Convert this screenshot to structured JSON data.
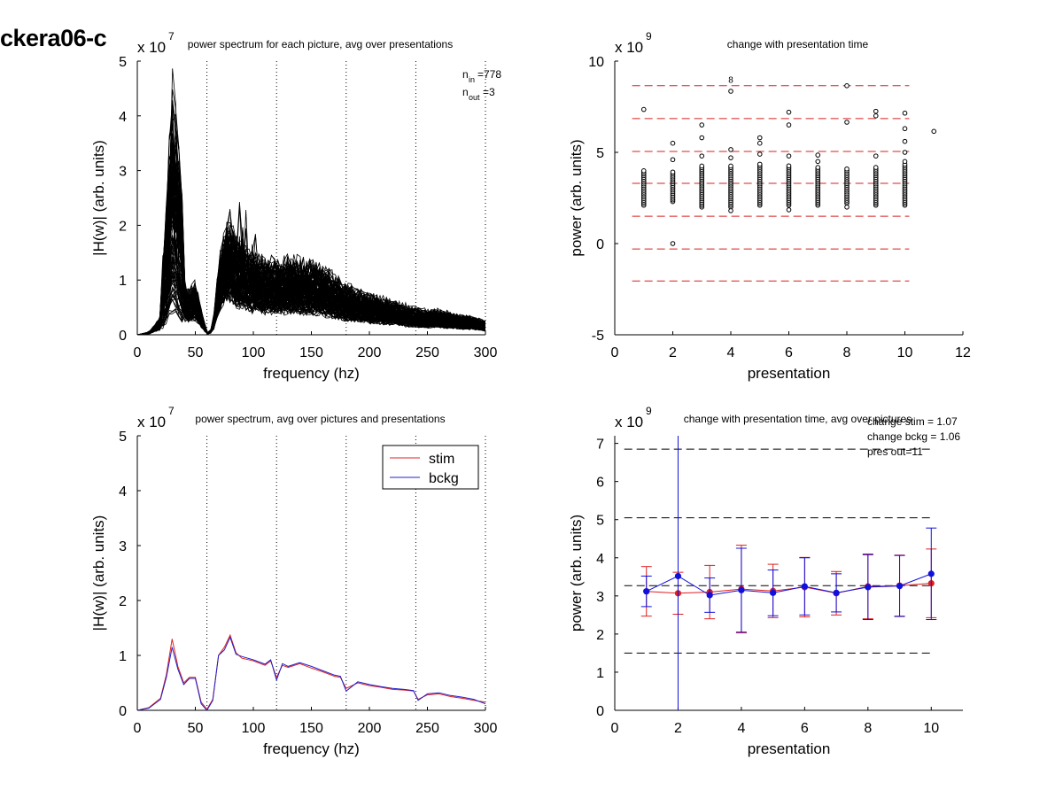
{
  "page_title": "ckera06-c",
  "chart_data": [
    {
      "id": "p1",
      "type": "line",
      "title": "power spectrum for each picture, avg over presentations",
      "xlabel": "frequency (hz)",
      "ylabel": "|H(w)| (arb. units)",
      "exponent_label": "x 10",
      "exponent": "7",
      "xlim": [
        0,
        300
      ],
      "ylim": [
        0,
        5
      ],
      "xticks": [
        0,
        50,
        100,
        150,
        200,
        250,
        300
      ],
      "yticks": [
        0,
        1,
        2,
        3,
        4,
        5
      ],
      "vlines": [
        60,
        120,
        180,
        240,
        300
      ],
      "annotation": {
        "n_in_label": "n",
        "n_in_sub": "in",
        "n_in_value": "=778",
        "n_out_label": "n",
        "n_out_sub": "out",
        "n_out_value": "=3"
      },
      "series_count": 778,
      "color": "#000000",
      "mean_x": [
        0,
        10,
        20,
        25,
        30,
        35,
        40,
        45,
        50,
        55,
        60,
        65,
        70,
        75,
        80,
        85,
        90,
        95,
        100,
        110,
        120,
        130,
        140,
        150,
        160,
        170,
        180,
        190,
        200,
        210,
        220,
        230,
        240,
        250,
        260,
        270,
        280,
        290,
        300
      ],
      "mean_y": [
        0.0,
        0.03,
        0.2,
        0.6,
        1.2,
        0.9,
        0.55,
        0.5,
        0.6,
        0.3,
        0.02,
        0.08,
        0.8,
        1.2,
        1.35,
        1.1,
        1.0,
        0.95,
        0.9,
        0.85,
        0.82,
        0.85,
        0.83,
        0.8,
        0.75,
        0.65,
        0.55,
        0.5,
        0.45,
        0.42,
        0.38,
        0.33,
        0.3,
        0.28,
        0.28,
        0.25,
        0.22,
        0.2,
        0.15
      ]
    },
    {
      "id": "p2",
      "type": "scatter",
      "title": "change with presentation time",
      "xlabel": "presentation",
      "ylabel": "power (arb. units)",
      "exponent_label": "x 10",
      "exponent": "9",
      "xlim": [
        0,
        12
      ],
      "ylim": [
        -5,
        10
      ],
      "xticks": [
        0,
        2,
        4,
        6,
        8,
        10,
        12
      ],
      "yticks": [
        -5,
        0,
        5,
        10
      ],
      "hlines": [
        8.65,
        6.85,
        5.05,
        3.3,
        1.5,
        -0.3,
        -2.05
      ],
      "hline_xrange": [
        0.6,
        10.15
      ],
      "hline_color": "#d62020",
      "points": [
        [
          1,
          7.35
        ],
        [
          2,
          5.5
        ],
        [
          2,
          4.6
        ],
        [
          2,
          0.0
        ],
        [
          3,
          6.5
        ],
        [
          3,
          5.8
        ],
        [
          3,
          4.8
        ],
        [
          4,
          8.35
        ],
        [
          4,
          5.15
        ],
        [
          4,
          4.7
        ],
        [
          4,
          1.8
        ],
        [
          5,
          5.8
        ],
        [
          5,
          5.5
        ],
        [
          5,
          4.9
        ],
        [
          6,
          7.2
        ],
        [
          6,
          6.5
        ],
        [
          6,
          4.8
        ],
        [
          6,
          1.85
        ],
        [
          7,
          4.85
        ],
        [
          7,
          4.5
        ],
        [
          8,
          8.65
        ],
        [
          8,
          6.65
        ],
        [
          8,
          2.0
        ],
        [
          9,
          7.25
        ],
        [
          9,
          7.0
        ],
        [
          9,
          4.8
        ],
        [
          10,
          7.15
        ],
        [
          10,
          6.3
        ],
        [
          10,
          5.6
        ],
        [
          10,
          5.0
        ],
        [
          10,
          4.5
        ],
        [
          11,
          6.15
        ]
      ],
      "dense_clusters": [
        {
          "x": 1,
          "min": 2.1,
          "max": 4.0
        },
        {
          "x": 2,
          "min": 2.3,
          "max": 4.0
        },
        {
          "x": 3,
          "min": 2.0,
          "max": 4.3
        },
        {
          "x": 4,
          "min": 2.0,
          "max": 4.3
        },
        {
          "x": 5,
          "min": 2.1,
          "max": 4.35
        },
        {
          "x": 6,
          "min": 2.1,
          "max": 4.3
        },
        {
          "x": 7,
          "min": 2.1,
          "max": 4.2
        },
        {
          "x": 8,
          "min": 2.2,
          "max": 4.1
        },
        {
          "x": 9,
          "min": 2.1,
          "max": 4.2
        },
        {
          "x": 10,
          "min": 2.1,
          "max": 4.4
        }
      ],
      "isolated_label": "8",
      "isolated_label_x": 4,
      "isolated_label_y": 9.0
    },
    {
      "id": "p3",
      "type": "line",
      "title": "power spectrum, avg over pictures and presentations",
      "xlabel": "frequency (hz)",
      "ylabel": "|H(w)| (arb. units)",
      "exponent_label": "x 10",
      "exponent": "7",
      "xlim": [
        0,
        300
      ],
      "ylim": [
        0,
        5
      ],
      "xticks": [
        0,
        50,
        100,
        150,
        200,
        250,
        300
      ],
      "yticks": [
        0,
        1,
        2,
        3,
        4,
        5
      ],
      "vlines": [
        60,
        120,
        180,
        240,
        300
      ],
      "legend": [
        "stim",
        "bckg"
      ],
      "legend_position": "top-right",
      "series": [
        {
          "name": "stim",
          "color": "#e02020",
          "x": [
            0,
            10,
            20,
            25,
            30,
            35,
            40,
            45,
            50,
            55,
            60,
            65,
            70,
            75,
            80,
            85,
            90,
            100,
            110,
            115,
            120,
            125,
            130,
            140,
            150,
            160,
            170,
            175,
            180,
            190,
            200,
            210,
            220,
            230,
            238,
            242,
            250,
            260,
            270,
            280,
            290,
            300
          ],
          "y": [
            0.0,
            0.05,
            0.22,
            0.65,
            1.3,
            0.8,
            0.5,
            0.6,
            0.6,
            0.15,
            0.02,
            0.2,
            1.0,
            1.15,
            1.37,
            1.05,
            0.95,
            0.9,
            0.82,
            0.9,
            0.6,
            0.82,
            0.78,
            0.85,
            0.77,
            0.7,
            0.62,
            0.6,
            0.4,
            0.5,
            0.45,
            0.42,
            0.38,
            0.37,
            0.35,
            0.2,
            0.28,
            0.3,
            0.25,
            0.22,
            0.18,
            0.15
          ]
        },
        {
          "name": "bckg",
          "color": "#2020cc",
          "x": [
            0,
            10,
            20,
            25,
            30,
            35,
            40,
            45,
            50,
            55,
            60,
            65,
            70,
            75,
            80,
            85,
            90,
            100,
            110,
            115,
            120,
            125,
            130,
            140,
            150,
            160,
            170,
            175,
            180,
            190,
            200,
            210,
            220,
            230,
            238,
            242,
            250,
            260,
            270,
            280,
            290,
            300
          ],
          "y": [
            0.0,
            0.04,
            0.2,
            0.6,
            1.15,
            0.75,
            0.47,
            0.58,
            0.58,
            0.12,
            0.0,
            0.18,
            1.0,
            1.1,
            1.33,
            1.02,
            0.98,
            0.92,
            0.84,
            0.92,
            0.55,
            0.85,
            0.8,
            0.87,
            0.8,
            0.72,
            0.64,
            0.62,
            0.35,
            0.52,
            0.47,
            0.43,
            0.4,
            0.38,
            0.36,
            0.18,
            0.3,
            0.32,
            0.27,
            0.24,
            0.2,
            0.12
          ]
        }
      ]
    },
    {
      "id": "p4",
      "type": "line",
      "title": "change with presentation time, avg over pictures",
      "xlabel": "presentation",
      "ylabel": "power (arb. units)",
      "exponent_label": "x 10",
      "exponent": "9",
      "xlim": [
        0,
        11
      ],
      "ylim": [
        0,
        7.2
      ],
      "xticks": [
        0,
        2,
        4,
        6,
        8,
        10
      ],
      "yticks": [
        0,
        1,
        2,
        3,
        4,
        5,
        6,
        7
      ],
      "hlines": [
        6.85,
        5.05,
        3.27,
        1.5
      ],
      "hline_xrange": [
        0.3,
        10.0
      ],
      "hline_color": "#000000",
      "annotations": [
        "change stim = 1.07",
        "change bckg = 1.06",
        "pres out=11"
      ],
      "series": [
        {
          "name": "stim",
          "color": "#e02020",
          "x": [
            1,
            2,
            3,
            4,
            5,
            6,
            7,
            8,
            9,
            10
          ],
          "y": [
            3.12,
            3.07,
            3.1,
            3.18,
            3.13,
            3.23,
            3.07,
            3.25,
            3.27,
            3.33
          ],
          "err": [
            0.65,
            0.55,
            0.7,
            1.15,
            0.7,
            0.78,
            0.57,
            0.85,
            0.8,
            0.9
          ]
        },
        {
          "name": "bckg",
          "color": "#1010dd",
          "x": [
            1,
            2,
            3,
            4,
            5,
            6,
            7,
            8,
            9,
            10
          ],
          "y": [
            3.12,
            3.52,
            3.02,
            3.15,
            3.08,
            3.25,
            3.08,
            3.23,
            3.26,
            3.58
          ],
          "err": [
            0.4,
            6.0,
            0.45,
            1.1,
            0.6,
            0.75,
            0.5,
            0.85,
            0.8,
            1.2
          ]
        }
      ]
    }
  ]
}
